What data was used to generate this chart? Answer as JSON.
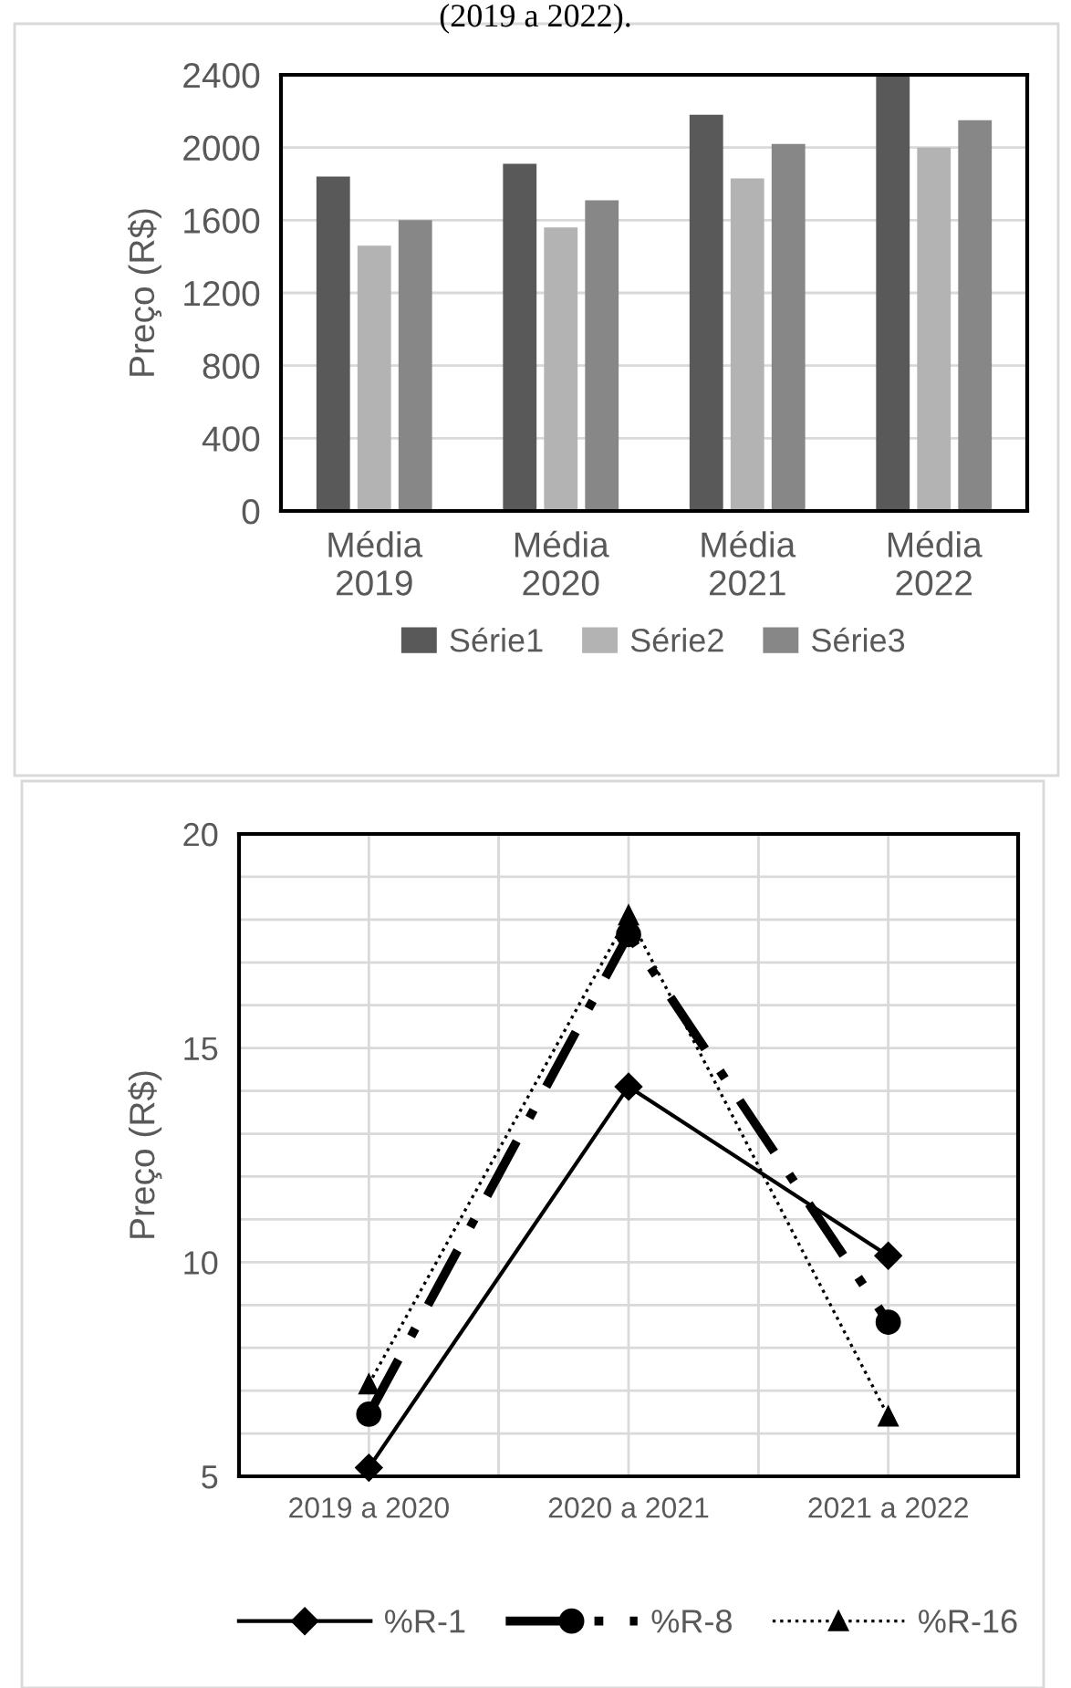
{
  "chart_data": [
    {
      "type": "bar",
      "annotations": [
        "(2019 a 2022)."
      ],
      "ylabel": "Preço (R$)",
      "categories": [
        "Média\n2019",
        "Média\n2020",
        "Média\n2021",
        "Média\n2022"
      ],
      "series": [
        {
          "name": "Série1",
          "color": "#595959",
          "values": [
            1840,
            1910,
            2180,
            2400
          ]
        },
        {
          "name": "Série2",
          "color": "#b3b3b3",
          "values": [
            1460,
            1560,
            1830,
            2000
          ]
        },
        {
          "name": "Série3",
          "color": "#878787",
          "values": [
            1600,
            1710,
            2020,
            2150
          ]
        }
      ],
      "ylim": [
        0,
        2400
      ],
      "yticks": [
        0,
        400,
        800,
        1200,
        1600,
        2000,
        2400
      ],
      "grid": "y",
      "legend": "bottom"
    },
    {
      "type": "line",
      "ylabel": "Preço (R$)",
      "categories": [
        "2019 a 2020",
        "2020 a 2021",
        "2021 a 2022"
      ],
      "series": [
        {
          "name": "%R-1",
          "color": "#000000",
          "values": [
            5.2,
            14.1,
            10.15
          ],
          "marker": "diamond",
          "line_style": "solid"
        },
        {
          "name": "%R-8",
          "color": "#000000",
          "values": [
            6.45,
            17.65,
            8.6
          ],
          "marker": "circle",
          "line_style": "dashdot"
        },
        {
          "name": "%R-16",
          "color": "#000000",
          "values": [
            7.15,
            18.1,
            6.4
          ],
          "marker": "triangle",
          "line_style": "dotted"
        }
      ],
      "ylim": [
        5,
        20
      ],
      "yticks": [
        5,
        {
          "value": 6,
          "label": null
        },
        {
          "value": 7,
          "label": null
        },
        {
          "value": 8,
          "label": null
        },
        {
          "value": 9,
          "label": null
        },
        10,
        {
          "value": 11,
          "label": null
        },
        {
          "value": 12,
          "label": null
        },
        {
          "value": 13,
          "label": null
        },
        {
          "value": 14,
          "label": null
        },
        15,
        {
          "value": 16,
          "label": null
        },
        {
          "value": 17,
          "label": null
        },
        {
          "value": 18,
          "label": null
        },
        {
          "value": 19,
          "label": null
        },
        20
      ],
      "grid": true,
      "legend": "bottom"
    }
  ]
}
